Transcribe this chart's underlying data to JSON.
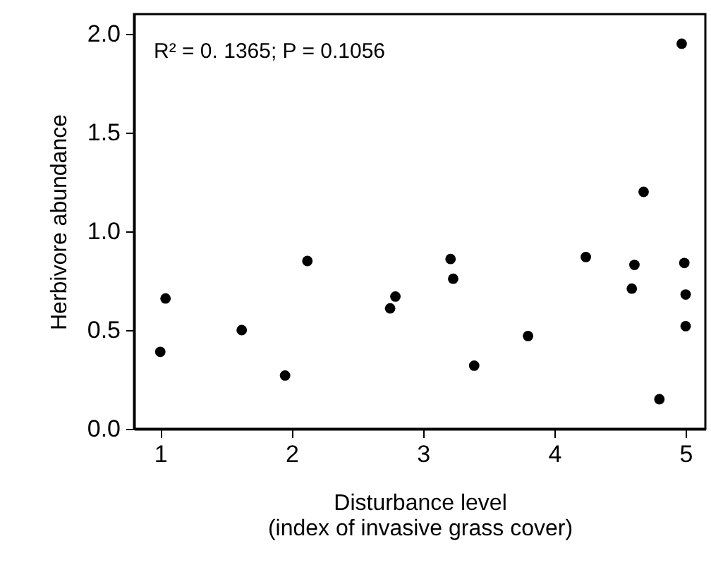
{
  "chart_data": {
    "type": "scatter",
    "xlabel": "Disturbance level\n(index of invasive grass cover)",
    "ylabel": "Herbivore abundance",
    "annotations": [
      "R² = 0. 1365; P = 0.1056"
    ],
    "x": [
      1.0,
      1.04,
      1.62,
      1.95,
      2.12,
      2.75,
      2.79,
      3.21,
      3.23,
      3.39,
      3.8,
      4.24,
      4.59,
      4.61,
      4.68,
      4.8,
      4.97,
      4.99,
      5.0,
      5.0
    ],
    "series": [
      {
        "color": "#000000",
        "values": [
          0.39,
          0.66,
          0.5,
          0.27,
          0.85,
          0.61,
          0.67,
          0.86,
          0.76,
          0.32,
          0.47,
          0.87,
          0.71,
          0.83,
          1.2,
          0.15,
          1.95,
          0.84,
          0.68,
          0.52
        ]
      }
    ],
    "xlim": [
      0.8,
      5.15
    ],
    "xticks": [
      1,
      2,
      3,
      4,
      5
    ],
    "ylim": [
      0,
      2.1
    ],
    "yticks": [
      {
        "value": 0,
        "label": "0.0"
      },
      0.5,
      {
        "value": 1,
        "label": "1.0"
      },
      1.5,
      {
        "value": 2,
        "label": "2.0"
      }
    ],
    "grid": false,
    "marker": "circle"
  }
}
